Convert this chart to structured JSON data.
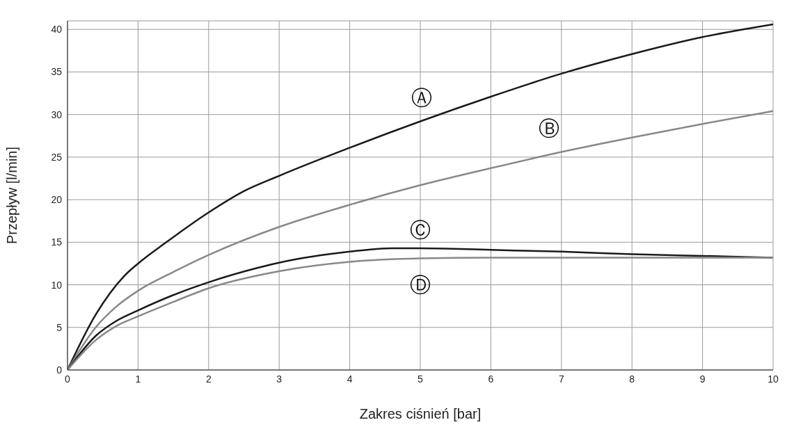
{
  "chart_data": {
    "type": "line",
    "xlabel": "Zakres ciśnień [bar]",
    "ylabel": "Przepływ [l/min]",
    "xlim": [
      0,
      10
    ],
    "xticks": [
      0,
      1,
      2,
      3,
      4,
      5,
      6,
      7,
      8,
      9,
      10
    ],
    "ylim": [
      0,
      41
    ],
    "yticks": [
      0,
      5,
      10,
      15,
      20,
      25,
      30,
      35,
      40
    ],
    "grid": true,
    "legend": false,
    "marker": "none",
    "line_style": "solid",
    "series": [
      {
        "name": "Ⓐ",
        "color": "#1a1a1a",
        "x": [
          0,
          0.4,
          0.8,
          1,
          1.4,
          2,
          2.5,
          3,
          4,
          5,
          6,
          7,
          8,
          9,
          10
        ],
        "values": [
          0,
          6.5,
          11,
          12.5,
          15,
          18.5,
          21,
          22.8,
          26.1,
          29.2,
          32.1,
          34.8,
          37.1,
          39.1,
          40.6
        ]
      },
      {
        "name": "Ⓑ",
        "color": "#888888",
        "x": [
          0,
          0.4,
          0.7,
          1,
          1.5,
          2,
          3,
          4,
          5,
          6,
          7,
          8,
          9,
          10
        ],
        "values": [
          0,
          5,
          7.5,
          9.3,
          11.5,
          13.5,
          16.8,
          19.4,
          21.7,
          23.7,
          25.6,
          27.3,
          28.9,
          30.4
        ]
      },
      {
        "name": "Ⓒ",
        "color": "#1a1a1a",
        "x": [
          0,
          0.4,
          0.7,
          1,
          1.5,
          2,
          2.7,
          3,
          4,
          4.6,
          5,
          6,
          7,
          8,
          9,
          10
        ],
        "values": [
          0,
          4,
          5.8,
          7,
          8.8,
          10.3,
          12,
          12.6,
          13.9,
          14.3,
          14.3,
          14.1,
          13.9,
          13.6,
          13.4,
          13.2
        ]
      },
      {
        "name": "Ⓓ",
        "color": "#888888",
        "x": [
          0,
          0.4,
          0.7,
          1,
          1.5,
          2,
          3,
          4,
          5,
          6,
          7,
          8,
          9,
          10
        ],
        "values": [
          0,
          3.5,
          5.2,
          6.3,
          8,
          9.6,
          11.6,
          12.7,
          13.1,
          13.2,
          13.2,
          13.2,
          13.2,
          13.2
        ]
      }
    ]
  }
}
